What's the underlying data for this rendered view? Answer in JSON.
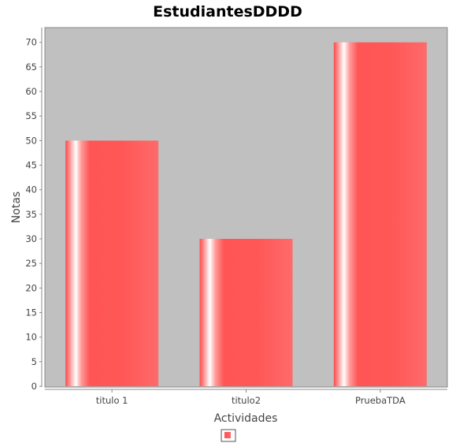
{
  "chart_data": {
    "type": "bar",
    "title": "EstudiantesDDDD",
    "xlabel": "Actividades",
    "ylabel": "Notas",
    "categories": [
      "titulo 1",
      "titulo2",
      "PruebaTDA"
    ],
    "series": [
      {
        "values": [
          50,
          30,
          70
        ]
      }
    ],
    "ylim": [
      0,
      73
    ],
    "yticks": [
      0,
      5,
      10,
      15,
      20,
      25,
      30,
      35,
      40,
      45,
      50,
      55,
      60,
      65,
      70
    ],
    "grid": false,
    "legend": "bottom",
    "colors": {
      "bar": "#ff5555",
      "bar_highlight": "#ffffff",
      "plot_background": "#c0c0c0",
      "axis": "#888888"
    }
  }
}
